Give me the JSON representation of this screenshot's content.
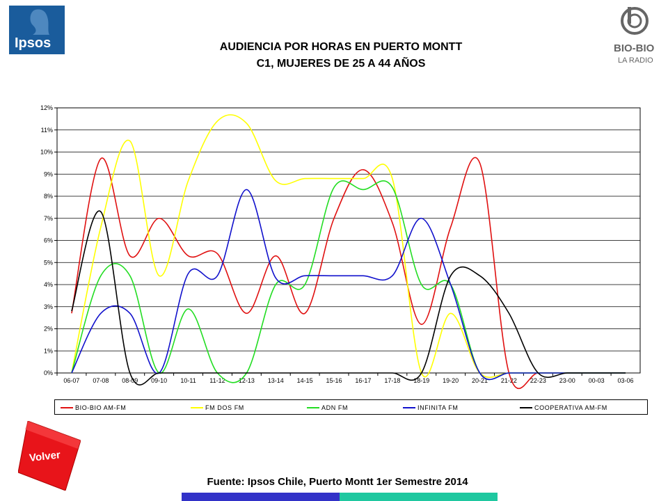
{
  "header": {
    "title_line1": "AUDIENCIA POR HORAS EN PUERTO MONTT",
    "title_line2": "C1, MUJERES DE 25 A 44 AÑOS",
    "ipsos_logo_text": "Ipsos",
    "biobio_logo_text": "BIO-BIO",
    "biobio_logo_sub": "LA RADIO"
  },
  "volver_label": "Volver",
  "footer": {
    "source": "Fuente: Ipsos Chile, Puerto Montt 1er Semestre 2014"
  },
  "colors": {
    "background": "#ffffff",
    "footer_blue": "#3232c8",
    "footer_green": "#1fc8a0",
    "volver_red": "#e8141a"
  },
  "chart_data": {
    "type": "line",
    "title": "",
    "xlabel": "",
    "ylabel": "",
    "categories": [
      "06-07",
      "07-08",
      "08-09",
      "09-10",
      "10-11",
      "11-12",
      "12-13",
      "13-14",
      "14-15",
      "15-16",
      "16-17",
      "17-18",
      "18-19",
      "19-20",
      "20-21",
      "21-22",
      "22-23",
      "23-00",
      "00-03",
      "03-06"
    ],
    "ylim": [
      0,
      12
    ],
    "yticks": [
      "0%",
      "1%",
      "2%",
      "3%",
      "4%",
      "5%",
      "6%",
      "7%",
      "8%",
      "9%",
      "10%",
      "11%",
      "12%"
    ],
    "grid": true,
    "legend_position": "bottom",
    "series": [
      {
        "name": "BIO-BIO AM-FM",
        "color": "#e01010",
        "values": [
          2.7,
          9.7,
          5.3,
          7.0,
          5.3,
          5.4,
          2.7,
          5.3,
          2.7,
          7.0,
          9.2,
          6.8,
          2.2,
          6.6,
          9.5,
          0,
          0,
          0,
          0,
          0
        ]
      },
      {
        "name": "FM DOS FM",
        "color": "#ffff00",
        "values": [
          0,
          6.6,
          10.5,
          4.4,
          8.7,
          11.4,
          11.3,
          8.7,
          8.8,
          8.8,
          8.8,
          8.8,
          0,
          2.7,
          0,
          0,
          0,
          0,
          0,
          0
        ]
      },
      {
        "name": "ADN FM",
        "color": "#22dd22",
        "values": [
          0,
          4.4,
          4.4,
          0,
          2.9,
          0,
          0,
          4.0,
          4.0,
          8.4,
          8.3,
          8.4,
          4.0,
          4.0,
          0,
          0,
          0,
          0,
          0,
          0
        ]
      },
      {
        "name": "INFINITA FM",
        "color": "#1010cc",
        "values": [
          0,
          2.7,
          2.7,
          0,
          4.5,
          4.4,
          8.3,
          4.3,
          4.4,
          4.4,
          4.4,
          4.4,
          7.0,
          4.0,
          0,
          0,
          0,
          0,
          0,
          0
        ]
      },
      {
        "name": "COOPERATIVA AM-FM",
        "color": "#000000",
        "values": [
          2.8,
          7.3,
          0,
          0,
          0,
          0,
          0,
          0,
          0,
          0,
          0,
          0,
          0,
          4.4,
          4.4,
          2.7,
          0,
          0,
          0,
          0
        ]
      }
    ]
  }
}
